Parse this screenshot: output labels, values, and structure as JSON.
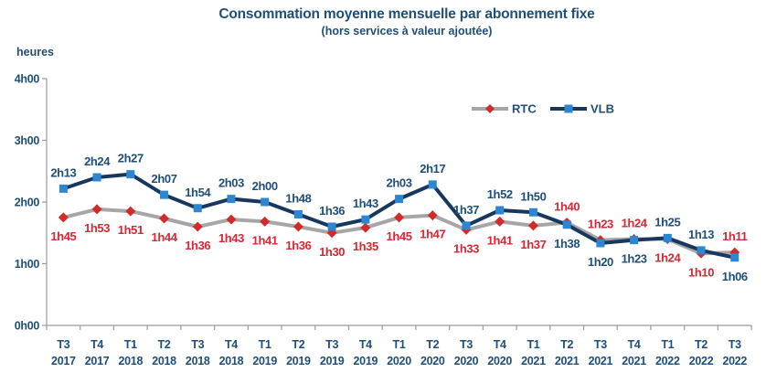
{
  "title": "Consommation moyenne mensuelle par abonnement fixe",
  "subtitle": "(hors services à valeur ajoutée)",
  "colors": {
    "navy_text": "#1F4E79",
    "axis": "#9B9B9B",
    "rtc_line": "#A6A6A6",
    "rtc_marker": "#D22B2B",
    "rtc_label": "#D92632",
    "vlb_line": "#17375E",
    "vlb_marker": "#2E86D1",
    "vlb_label": "#1F4E79"
  },
  "chart_data": {
    "type": "line",
    "title": "Consommation moyenne mensuelle par abonnement fixe",
    "subtitle": "(hors services à valeur ajoutée)",
    "ylabel": "heures",
    "xlabel": "",
    "grid": false,
    "legend_position": "inside-top-right",
    "ylim_minutes": [
      0,
      240
    ],
    "y_ticks": [
      {
        "minutes": 0,
        "label": "0h00"
      },
      {
        "minutes": 60,
        "label": "1h00"
      },
      {
        "minutes": 120,
        "label": "2h00"
      },
      {
        "minutes": 180,
        "label": "3h00"
      },
      {
        "minutes": 240,
        "label": "4h00"
      }
    ],
    "categories": [
      {
        "quarter": "T3",
        "year": "2017"
      },
      {
        "quarter": "T4",
        "year": "2017"
      },
      {
        "quarter": "T1",
        "year": "2018"
      },
      {
        "quarter": "T2",
        "year": "2018"
      },
      {
        "quarter": "T3",
        "year": "2018"
      },
      {
        "quarter": "T4",
        "year": "2018"
      },
      {
        "quarter": "T1",
        "year": "2019"
      },
      {
        "quarter": "T2",
        "year": "2019"
      },
      {
        "quarter": "T3",
        "year": "2019"
      },
      {
        "quarter": "T4",
        "year": "2019"
      },
      {
        "quarter": "T1",
        "year": "2020"
      },
      {
        "quarter": "T2",
        "year": "2020"
      },
      {
        "quarter": "T3",
        "year": "2020"
      },
      {
        "quarter": "T4",
        "year": "2020"
      },
      {
        "quarter": "T1",
        "year": "2021"
      },
      {
        "quarter": "T2",
        "year": "2021"
      },
      {
        "quarter": "T3",
        "year": "2021"
      },
      {
        "quarter": "T4",
        "year": "2021"
      },
      {
        "quarter": "T1",
        "year": "2022"
      },
      {
        "quarter": "T2",
        "year": "2022"
      },
      {
        "quarter": "T3",
        "year": "2022"
      }
    ],
    "series": [
      {
        "name": "RTC",
        "marker": "diamond",
        "line_color": "#A6A6A6",
        "marker_color": "#D22B2B",
        "label_color": "#D92632",
        "labels": [
          "1h45",
          "1h53",
          "1h51",
          "1h44",
          "1h36",
          "1h43",
          "1h41",
          "1h36",
          "1h30",
          "1h35",
          "1h45",
          "1h47",
          "1h33",
          "1h41",
          "1h37",
          "1h40",
          "1h23",
          "1h24",
          "1h24",
          "1h10",
          "1h11"
        ],
        "minutes": [
          105,
          113,
          111,
          104,
          96,
          103,
          101,
          96,
          90,
          95,
          105,
          107,
          93,
          101,
          97,
          100,
          83,
          84,
          84,
          70,
          71
        ],
        "label_side": [
          "below",
          "below",
          "below",
          "below",
          "below",
          "below",
          "below",
          "below",
          "below",
          "below",
          "below",
          "below",
          "below",
          "below",
          "below",
          "above",
          "above",
          "above",
          "below",
          "below",
          "above"
        ]
      },
      {
        "name": "VLB",
        "marker": "square",
        "line_color": "#17375E",
        "marker_color": "#2E86D1",
        "label_color": "#1F4E79",
        "labels": [
          "2h13",
          "2h24",
          "2h27",
          "2h07",
          "1h54",
          "2h03",
          "2h00",
          "1h48",
          "1h36",
          "1h43",
          "2h03",
          "2h17",
          "1h37",
          "1h52",
          "1h50",
          "1h38",
          "1h20",
          "1h23",
          "1h25",
          "1h13",
          "1h06"
        ],
        "minutes": [
          133,
          144,
          147,
          127,
          114,
          123,
          120,
          108,
          96,
          103,
          123,
          137,
          97,
          112,
          110,
          98,
          80,
          83,
          85,
          73,
          66
        ],
        "label_side": [
          "above",
          "above",
          "above",
          "above",
          "above",
          "above",
          "above",
          "above",
          "above",
          "above",
          "above",
          "above",
          "above",
          "above",
          "above",
          "below",
          "below",
          "below",
          "above",
          "above",
          "below"
        ]
      }
    ]
  }
}
